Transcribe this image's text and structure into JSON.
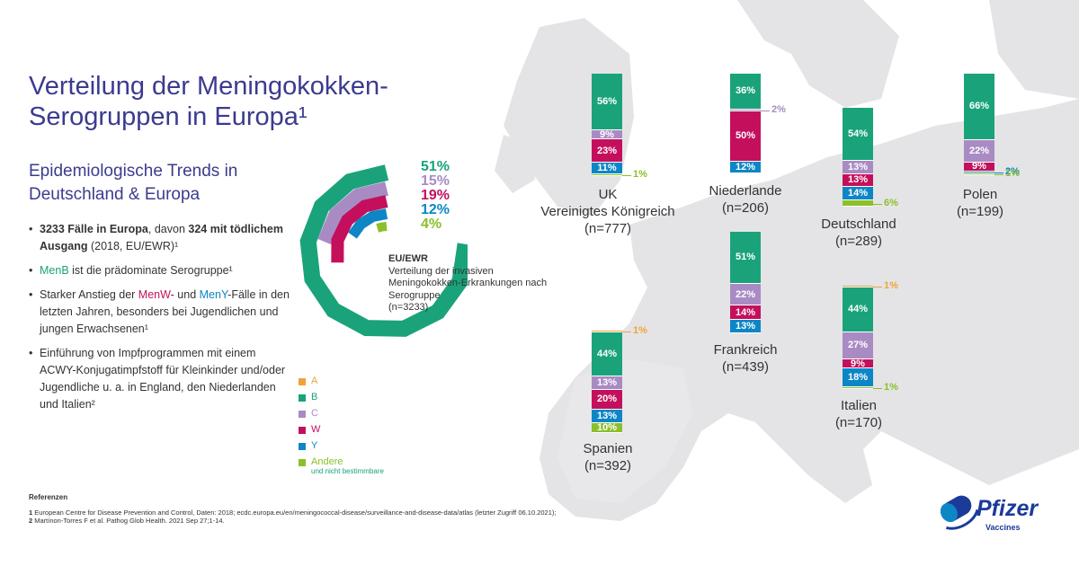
{
  "title": "Verteilung der Meningokokken-Serogruppen in Europa¹",
  "subtitle": "Epidemiologische Trends in Deutschland & Europa",
  "bullets": {
    "b1_a": "3233 Fälle in Europa",
    "b1_b": ", davon ",
    "b1_c": "324 mit tödlichem Ausgang",
    "b1_d": " (2018, EU/EWR)¹",
    "b2_a": "MenB",
    "b2_b": " ist die prädominate Serogruppe¹",
    "b3_a": "Starker Anstieg der ",
    "b3_b": "MenW",
    "b3_c": "- und ",
    "b3_d": "MenY",
    "b3_e": "-Fälle in den letzten Jahren, besonders bei Jugendlichen und jungen Erwachsenen¹",
    "b4": "Einführung von Impfprogrammen mit einem ACWY-Konjugatimpfstoff für Kleinkinder und/oder Jugendliche u. a. in England, den Niederlanden und Italien²"
  },
  "eu_caption": {
    "heading": "EU/EWR",
    "text": "Verteilung der invasiven Meningokokken-Erkrankungen nach Serogruppe",
    "n": "(n=3233)"
  },
  "colors": {
    "A": "#f0a23a",
    "B": "#1aa37a",
    "C": "#a98bc4",
    "W": "#c4105c",
    "Y": "#0d86c6",
    "Andere": "#8cbf2a",
    "title": "#3b3b8f",
    "map": "#e4e4e6"
  },
  "legend": [
    {
      "key": "A",
      "label": "A"
    },
    {
      "key": "B",
      "label": "B"
    },
    {
      "key": "C",
      "label": "C"
    },
    {
      "key": "W",
      "label": "W"
    },
    {
      "key": "Y",
      "label": "Y"
    },
    {
      "key": "Andere",
      "label": "Andere",
      "sub": "und nicht bestimmbare"
    }
  ],
  "chart_data": [
    {
      "type": "radial-bar",
      "region": "EU/EWR",
      "n": 3233,
      "categories": [
        "B",
        "C",
        "W",
        "Y",
        "Andere"
      ],
      "values": [
        51,
        15,
        19,
        12,
        4
      ],
      "labels": [
        "51%",
        "15%",
        "19%",
        "12%",
        "4%"
      ]
    },
    {
      "type": "bar",
      "stacked": true,
      "categories": [
        "UK",
        "Niederlande",
        "Deutschland",
        "Polen",
        "Frankreich",
        "Italien",
        "Spanien"
      ],
      "names": [
        [
          "UK",
          "Vereinigtes Königreich",
          "(n=777)"
        ],
        [
          "Niederlande",
          "(n=206)"
        ],
        [
          "Deutschland",
          "(n=289)"
        ],
        [
          "Polen",
          "(n=199)"
        ],
        [
          "Frankreich",
          "(n=439)"
        ],
        [
          "Italien",
          "(n=170)"
        ],
        [
          "Spanien",
          "(n=392)"
        ]
      ],
      "series": [
        {
          "name": "A",
          "values": [
            0,
            0,
            0,
            0,
            0,
            1,
            1
          ]
        },
        {
          "name": "B",
          "values": [
            56,
            36,
            54,
            66,
            51,
            44,
            44
          ]
        },
        {
          "name": "C",
          "values": [
            9,
            2,
            13,
            22,
            22,
            27,
            13
          ]
        },
        {
          "name": "W",
          "values": [
            23,
            50,
            13,
            9,
            14,
            9,
            20
          ]
        },
        {
          "name": "Y",
          "values": [
            11,
            12,
            14,
            2,
            13,
            18,
            13
          ]
        },
        {
          "name": "Andere",
          "values": [
            1,
            0,
            6,
            1,
            0,
            1,
            10
          ]
        }
      ],
      "value_labels": [
        {
          "A": "",
          "B": "56%",
          "C": "9%",
          "W": "23%",
          "Y": "11%",
          "Andere": "1%"
        },
        {
          "A": "",
          "B": "36%",
          "C": "2%",
          "W": "50%",
          "Y": "12%",
          "Andere": ""
        },
        {
          "A": "",
          "B": "54%",
          "C": "13%",
          "W": "13%",
          "Y": "14%",
          "Andere": "6%"
        },
        {
          "A": "",
          "B": "66%",
          "C": "22%",
          "W": "9%",
          "Y": "2%",
          "Andere": "1%",
          "extra": "1%"
        },
        {
          "A": "",
          "B": "51%",
          "C": "22%",
          "W": "14%",
          "Y": "13%",
          "Andere": ""
        },
        {
          "A": "1%",
          "B": "44%",
          "C": "27%",
          "W": "9%",
          "Y": "18%",
          "Andere": "1%"
        },
        {
          "A": "1%",
          "B": "44%",
          "C": "13%",
          "W": "20%",
          "Y": "13%",
          "Andere": "10%"
        }
      ]
    }
  ],
  "references": {
    "heading": "Referenzen",
    "r1_num": "1",
    "r1": " European Centre for Disease Prevention and Control, Daten: 2018; ecdc.europa.eu/en/meningococcal-disease/surveillance-and-disease-data/atlas (letzter Zugriff 06.10.2021);",
    "r2_num": "2",
    "r2": " Martínon-Torres F et al. Pathog Glob Health. 2021 Sep 27;1-14."
  },
  "logo": {
    "word": "Pfizer",
    "sub": "Vaccines",
    "icon": "pfizer-pill-icon"
  }
}
